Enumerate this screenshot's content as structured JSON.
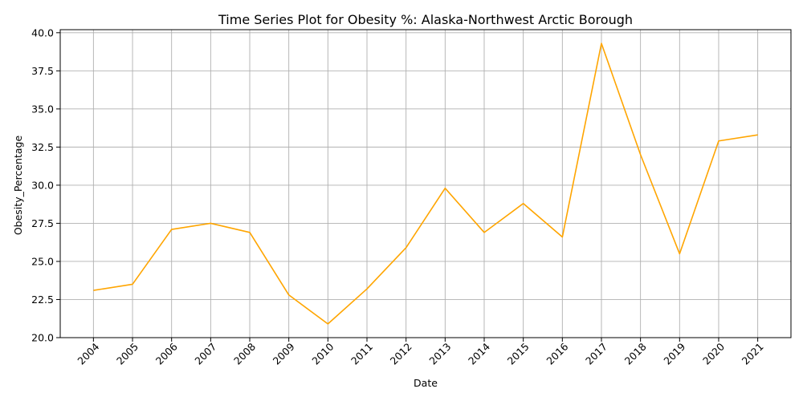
{
  "chart_data": {
    "type": "line",
    "title": "Time Series Plot for Obesity %: Alaska-Northwest Arctic Borough",
    "xlabel": "Date",
    "ylabel": "Obesity_Percentage",
    "x": [
      "2004",
      "2005",
      "2006",
      "2007",
      "2008",
      "2009",
      "2010",
      "2011",
      "2012",
      "2013",
      "2014",
      "2015",
      "2016",
      "2017",
      "2018",
      "2019",
      "2020",
      "2021"
    ],
    "series": [
      {
        "values": [
          23.1,
          23.5,
          27.1,
          27.5,
          26.9,
          22.8,
          20.9,
          23.2,
          25.9,
          29.8,
          26.9,
          28.8,
          26.6,
          39.3,
          32.0,
          25.5,
          32.9,
          33.3
        ],
        "color": "#ffa500"
      }
    ],
    "ylim": [
      20.0,
      40.0
    ],
    "yticks": [
      "20.0",
      "22.5",
      "25.0",
      "27.5",
      "30.0",
      "32.5",
      "35.0",
      "37.5",
      "40.0"
    ],
    "grid": true
  }
}
